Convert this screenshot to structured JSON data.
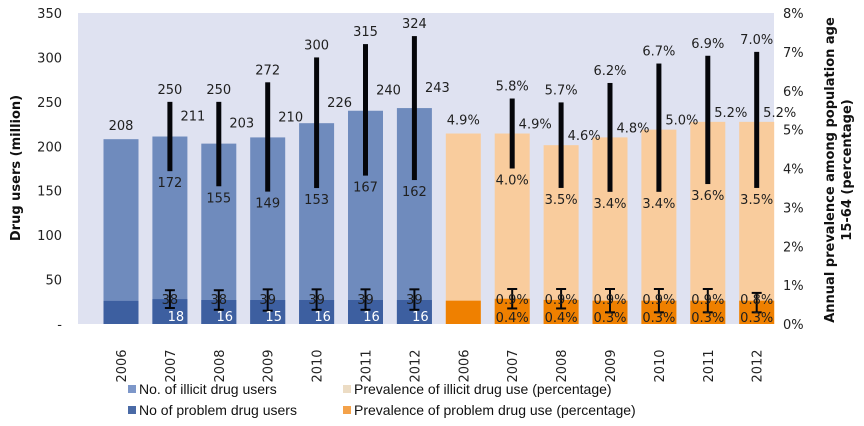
{
  "chart_data": {
    "type": "bar",
    "title": "",
    "categories": [
      "2006",
      "2007",
      "2008",
      "2009",
      "2010",
      "2011",
      "2012"
    ],
    "left_axis": {
      "label": "Drug users (million)",
      "ylim": [
        0,
        350
      ],
      "ticks": [
        "-",
        "50",
        "100",
        "150",
        "200",
        "250",
        "300",
        "350"
      ]
    },
    "right_axis": {
      "label_line1": "Annual prevalence among population age",
      "label_line2": "15-64 (percentage)",
      "ylim": [
        0,
        8
      ],
      "ticks": [
        "0%",
        "1%",
        "2%",
        "3%",
        "4%",
        "5%",
        "6%",
        "7%",
        "8%"
      ]
    },
    "x_tick_labels": [
      "2006",
      "2007",
      "2008",
      "2009",
      "2010",
      "2011",
      "2012",
      "2006",
      "2007",
      "2008",
      "2009",
      "2010",
      "2011",
      "2012"
    ],
    "series": [
      {
        "name": "No. of illicit drug users",
        "axis": "left",
        "color": "#6f8bbd",
        "values": [
          208,
          211,
          203,
          210,
          226,
          240,
          243
        ],
        "value_labels": [
          "208",
          "211",
          "203",
          "210",
          "226",
          "240",
          "243"
        ],
        "range_low": [
          null,
          172,
          155,
          149,
          153,
          167,
          162
        ],
        "range_high": [
          null,
          250,
          250,
          272,
          300,
          315,
          324
        ],
        "range_low_labels": [
          "",
          "172",
          "155",
          "149",
          "153",
          "167",
          "162"
        ],
        "range_high_labels": [
          "",
          "250",
          "250",
          "272",
          "300",
          "315",
          "324"
        ]
      },
      {
        "name": "No of problem drug users",
        "axis": "left",
        "color": "#3d5fa0",
        "values": [
          26,
          28,
          27,
          27,
          27,
          27,
          27
        ],
        "range_low": [
          null,
          18,
          16,
          15,
          16,
          16,
          16
        ],
        "range_high": [
          null,
          38,
          38,
          39,
          39,
          39,
          39
        ],
        "range_low_labels": [
          "",
          "18",
          "16",
          "15",
          "16",
          "16",
          "16"
        ],
        "range_high_labels": [
          "",
          "38",
          "38",
          "39",
          "39",
          "39",
          "39"
        ]
      },
      {
        "name": "Prevalence of illicit drug use (percentage)",
        "axis": "right",
        "color": "#f9cc9d",
        "values": [
          4.9,
          4.9,
          4.6,
          4.8,
          5.0,
          5.2,
          5.2
        ],
        "value_labels": [
          "4.9%",
          "4.9%",
          "4.6%",
          "4.8%",
          "5.0%",
          "5.2%",
          "5.2%"
        ],
        "range_low": [
          null,
          4.0,
          3.5,
          3.4,
          3.4,
          3.6,
          3.5
        ],
        "range_high": [
          null,
          5.8,
          5.7,
          6.2,
          6.7,
          6.9,
          7.0
        ],
        "range_low_labels": [
          "",
          "4.0%",
          "3.5%",
          "3.4%",
          "3.4%",
          "3.6%",
          "3.5%"
        ],
        "range_high_labels": [
          "",
          "5.8%",
          "5.7%",
          "6.2%",
          "6.7%",
          "6.9%",
          "7.0%"
        ]
      },
      {
        "name": "Prevalence of problem drug use (percentage)",
        "axis": "right",
        "color": "#ef8000",
        "values": [
          0.6,
          0.65,
          0.62,
          0.6,
          0.6,
          0.6,
          0.6
        ],
        "range_low": [
          null,
          0.4,
          0.4,
          0.3,
          0.3,
          0.3,
          0.3
        ],
        "range_high": [
          null,
          0.9,
          0.9,
          0.9,
          0.9,
          0.9,
          0.8
        ],
        "range_low_labels": [
          "",
          "0.4%",
          "0.4%",
          "0.3%",
          "0.3%",
          "0.3%",
          "0.3%"
        ],
        "range_high_labels": [
          "",
          "0.9%",
          "0.9%",
          "0.9%",
          "0.9%",
          "0.9%",
          "0.8%"
        ]
      }
    ],
    "legend": {
      "placement": "bottom",
      "items": [
        {
          "label": "No. of illicit drug users",
          "color": "#7d97c9"
        },
        {
          "label": "Prevalence of illicit drug use (percentage)",
          "color": "#ecdcc4"
        },
        {
          "label": "No of problem drug users",
          "color": "#4a6aa6"
        },
        {
          "label": "Prevalence of problem drug use (percentage)",
          "color": "#f4a24a"
        }
      ]
    },
    "colors": {
      "plot_background": "#dfe2f1",
      "error_bar": "#05060a"
    }
  }
}
